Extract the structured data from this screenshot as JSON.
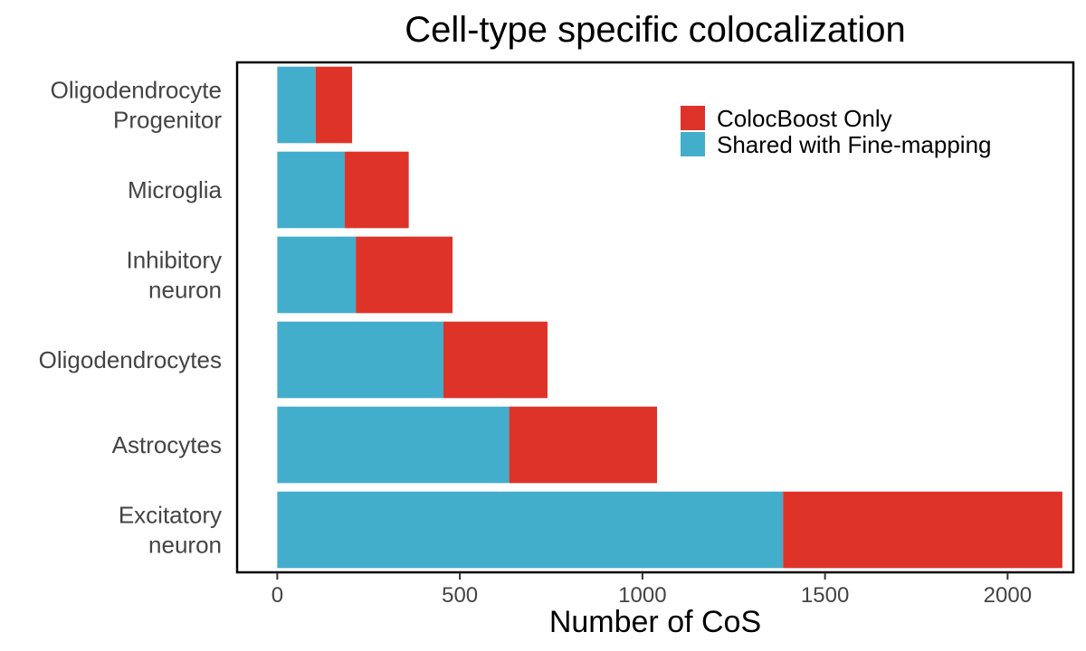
{
  "chart_data": {
    "type": "bar",
    "orientation": "horizontal",
    "stacked": true,
    "title": "Cell-type specific colocalization",
    "xlabel": "Number of CoS",
    "ylabel": "",
    "xlim": [
      -110,
      2180
    ],
    "xticks": [
      0,
      500,
      1000,
      1500,
      2000
    ],
    "categories": [
      [
        "Oligodendrocyte",
        "Progenitor"
      ],
      [
        "Microglia"
      ],
      [
        "Inhibitory",
        "neuron"
      ],
      [
        "Oligodendrocytes"
      ],
      [
        "Astrocytes"
      ],
      [
        "Excitatory",
        "neuron"
      ]
    ],
    "series": [
      {
        "name": "Shared with Fine-mapping",
        "color": "#43ADCC",
        "values": [
          105,
          185,
          215,
          455,
          635,
          1385
        ]
      },
      {
        "name": "ColocBoost Only",
        "color": "#DE3329",
        "values": [
          100,
          175,
          265,
          285,
          405,
          765
        ]
      }
    ],
    "legend": {
      "placement": "top-right",
      "entries": [
        "ColocBoost Only",
        "Shared with Fine-mapping"
      ]
    },
    "grid": false
  }
}
